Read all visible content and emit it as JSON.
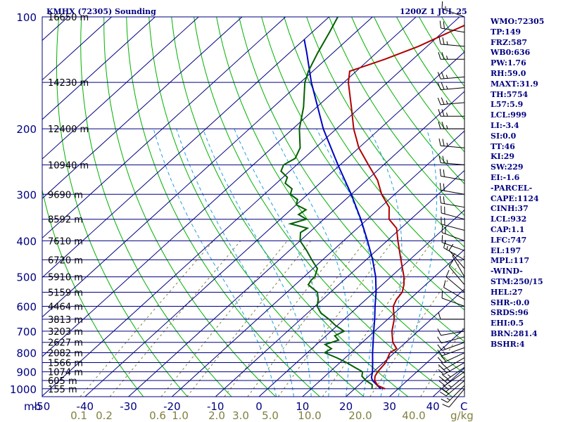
{
  "header": {
    "title": "KMHX (72305) Sounding",
    "datetime": "1200Z  1 JUL 25"
  },
  "indices": [
    "WMO:72305",
    "TP:149",
    "FRZ:587",
    "WB0:636",
    "PW:1.76",
    "RH:59.0",
    "MAXT:31.9",
    "TH:5754",
    "L57:5.9",
    "LCL:999",
    "LI:-3.4",
    "SI:0.0",
    "TT:46",
    "KI:29",
    "SW:229",
    "EI:-1.6",
    "-PARCEL-",
    "CAPE:1124",
    "CINH:37",
    "LCL:932",
    "CAP:1.1",
    "LFC:747",
    "EL:197",
    "MPL:117",
    "-WIND-",
    "STM:250/15",
    "HEL:27",
    "SHR-:0.0",
    "SRDS:96",
    "EHI:0.5",
    "BRN:281.4",
    "BSHR:4"
  ],
  "colors": {
    "frame": "#000080",
    "isobar": "#000080",
    "isotherm": "#000080",
    "dry_adiabat": "#00b000",
    "moist_adiabat": "#20a0e0",
    "mixing_ratio": "#808040",
    "temperature": "#b00000",
    "dewpoint": "#006000",
    "parcel": "#0000c0",
    "wind_barb": "#000000"
  },
  "chart_data": {
    "type": "skew-t log-p sounding",
    "pressure_ticks": [
      100,
      200,
      300,
      400,
      500,
      600,
      700,
      800,
      900,
      1000
    ],
    "pressure_unit": "mb",
    "height_labels": [
      {
        "p": 100,
        "label": "16650 m"
      },
      {
        "p": 150,
        "label": "14230 m"
      },
      {
        "p": 200,
        "label": "12400 m"
      },
      {
        "p": 250,
        "label": "10940 m"
      },
      {
        "p": 300,
        "label": "9690 m"
      },
      {
        "p": 350,
        "label": "8592 m"
      },
      {
        "p": 400,
        "label": "7610 m"
      },
      {
        "p": 450,
        "label": "6720 m"
      },
      {
        "p": 500,
        "label": "5910 m"
      },
      {
        "p": 550,
        "label": "5159 m"
      },
      {
        "p": 600,
        "label": "4464 m"
      },
      {
        "p": 650,
        "label": "3813 m"
      },
      {
        "p": 700,
        "label": "3203 m"
      },
      {
        "p": 750,
        "label": "2627 m"
      },
      {
        "p": 800,
        "label": "2082 m"
      },
      {
        "p": 850,
        "label": "1566 m"
      },
      {
        "p": 900,
        "label": "1074 m"
      },
      {
        "p": 950,
        "label": "605 m"
      },
      {
        "p": 1000,
        "label": "155 m"
      }
    ],
    "temperature_ticks": [
      -50,
      -40,
      -30,
      -20,
      -10,
      0,
      10,
      20,
      30,
      40
    ],
    "temperature_tick_labels": [
      "-50",
      "-40",
      "-30",
      "-20",
      "-10",
      "0",
      "10",
      "20",
      "30",
      "40"
    ],
    "corner_labels": {
      "pressure_unit": "mb",
      "temperature_unit": "C",
      "mixing_ratio_unit": "g/kg"
    },
    "mixing_ratio_labels": [
      {
        "w": 0.1,
        "label": "0.1"
      },
      {
        "w": 0.2,
        "label": "0.2"
      },
      {
        "w": 0.6,
        "label": "0.6"
      },
      {
        "w": 1.0,
        "label": "1.0"
      },
      {
        "w": 2.0,
        "label": "2.0"
      },
      {
        "w": 3.0,
        "label": "3.0"
      },
      {
        "w": 5.0,
        "label": "5.0"
      },
      {
        "w": 10.0,
        "label": "10.0"
      },
      {
        "w": 20.0,
        "label": "20.0"
      },
      {
        "w": 40.0,
        "label": "40.0"
      }
    ],
    "temperature_profile": [
      [
        1000,
        27.0
      ],
      [
        980,
        24.5
      ],
      [
        950,
        22.5
      ],
      [
        925,
        21.5
      ],
      [
        900,
        21.0
      ],
      [
        850,
        20.5
      ],
      [
        800,
        19.0
      ],
      [
        780,
        19.5
      ],
      [
        750,
        17.0
      ],
      [
        700,
        14.0
      ],
      [
        650,
        11.5
      ],
      [
        600,
        8.0
      ],
      [
        575,
        7.0
      ],
      [
        550,
        6.5
      ],
      [
        525,
        5.0
      ],
      [
        500,
        3.0
      ],
      [
        450,
        -2.0
      ],
      [
        400,
        -7.5
      ],
      [
        370,
        -11.0
      ],
      [
        350,
        -15.0
      ],
      [
        325,
        -18.0
      ],
      [
        300,
        -23.0
      ],
      [
        275,
        -27.5
      ],
      [
        250,
        -33.5
      ],
      [
        225,
        -40.0
      ],
      [
        200,
        -46.0
      ],
      [
        175,
        -52.0
      ],
      [
        150,
        -59.0
      ],
      [
        140,
        -61.5
      ],
      [
        130,
        -56.5
      ],
      [
        120,
        -52.0
      ],
      [
        110,
        -48.5
      ],
      [
        100,
        -44.5
      ]
    ],
    "dewpoint_profile": [
      [
        1000,
        24.0
      ],
      [
        975,
        23.0
      ],
      [
        950,
        20.5
      ],
      [
        925,
        18.5
      ],
      [
        900,
        17.5
      ],
      [
        875,
        14.5
      ],
      [
        850,
        11.5
      ],
      [
        825,
        8.0
      ],
      [
        800,
        4.0
      ],
      [
        780,
        4.5
      ],
      [
        760,
        2.0
      ],
      [
        740,
        4.0
      ],
      [
        720,
        2.0
      ],
      [
        700,
        3.0
      ],
      [
        675,
        -0.5
      ],
      [
        650,
        -3.5
      ],
      [
        625,
        -7.0
      ],
      [
        600,
        -9.5
      ],
      [
        575,
        -11.0
      ],
      [
        550,
        -13.0
      ],
      [
        525,
        -17.0
      ],
      [
        510,
        -17.5
      ],
      [
        500,
        -17.5
      ],
      [
        475,
        -19.0
      ],
      [
        450,
        -22.5
      ],
      [
        425,
        -26.0
      ],
      [
        400,
        -30.0
      ],
      [
        380,
        -32.0
      ],
      [
        370,
        -31.5
      ],
      [
        360,
        -36.5
      ],
      [
        350,
        -34.0
      ],
      [
        340,
        -37.0
      ],
      [
        330,
        -36.5
      ],
      [
        320,
        -40.0
      ],
      [
        310,
        -41.0
      ],
      [
        300,
        -44.0
      ],
      [
        290,
        -45.0
      ],
      [
        280,
        -48.0
      ],
      [
        270,
        -49.0
      ],
      [
        260,
        -52.0
      ],
      [
        250,
        -53.0
      ],
      [
        240,
        -52.0
      ],
      [
        225,
        -53.5
      ],
      [
        200,
        -58.5
      ],
      [
        175,
        -63.0
      ],
      [
        150,
        -69.0
      ],
      [
        140,
        -71.0
      ],
      [
        125,
        -73.5
      ],
      [
        110,
        -76.0
      ],
      [
        100,
        -78.0
      ]
    ],
    "parcel_path": [
      [
        1000,
        26.0
      ],
      [
        950,
        22.0
      ],
      [
        932,
        21.0
      ],
      [
        900,
        19.8
      ],
      [
        850,
        17.5
      ],
      [
        800,
        15.0
      ],
      [
        750,
        12.5
      ],
      [
        700,
        9.8
      ],
      [
        650,
        7.0
      ],
      [
        600,
        3.8
      ],
      [
        550,
        0.5
      ],
      [
        500,
        -3.5
      ],
      [
        450,
        -8.5
      ],
      [
        400,
        -14.5
      ],
      [
        350,
        -21.5
      ],
      [
        300,
        -30.0
      ],
      [
        250,
        -40.5
      ],
      [
        200,
        -53.0
      ],
      [
        150,
        -67.5
      ],
      [
        125,
        -76.0
      ],
      [
        115,
        -80.0
      ]
    ],
    "wind_barbs": [
      {
        "p": 1000,
        "dir": 220,
        "spd": 10
      },
      {
        "p": 980,
        "dir": 225,
        "spd": 15
      },
      {
        "p": 950,
        "dir": 230,
        "spd": 20
      },
      {
        "p": 925,
        "dir": 230,
        "spd": 25
      },
      {
        "p": 900,
        "dir": 235,
        "spd": 25
      },
      {
        "p": 875,
        "dir": 235,
        "spd": 25
      },
      {
        "p": 850,
        "dir": 240,
        "spd": 25
      },
      {
        "p": 825,
        "dir": 240,
        "spd": 20
      },
      {
        "p": 800,
        "dir": 245,
        "spd": 20
      },
      {
        "p": 775,
        "dir": 250,
        "spd": 15
      },
      {
        "p": 750,
        "dir": 250,
        "spd": 15
      },
      {
        "p": 725,
        "dir": 255,
        "spd": 10
      },
      {
        "p": 700,
        "dir": 260,
        "spd": 10
      },
      {
        "p": 650,
        "dir": 270,
        "spd": 10
      },
      {
        "p": 600,
        "dir": 290,
        "spd": 10
      },
      {
        "p": 575,
        "dir": 300,
        "spd": 10
      },
      {
        "p": 550,
        "dir": 310,
        "spd": 10
      },
      {
        "p": 525,
        "dir": 320,
        "spd": 10
      },
      {
        "p": 500,
        "dir": 330,
        "spd": 5
      },
      {
        "p": 475,
        "dir": 320,
        "spd": 10
      },
      {
        "p": 450,
        "dir": 300,
        "spd": 15
      },
      {
        "p": 425,
        "dir": 290,
        "spd": 15
      },
      {
        "p": 400,
        "dir": 290,
        "spd": 20
      },
      {
        "p": 375,
        "dir": 285,
        "spd": 20
      },
      {
        "p": 350,
        "dir": 285,
        "spd": 20
      },
      {
        "p": 325,
        "dir": 280,
        "spd": 20
      },
      {
        "p": 300,
        "dir": 280,
        "spd": 20
      },
      {
        "p": 275,
        "dir": 280,
        "spd": 20
      },
      {
        "p": 250,
        "dir": 275,
        "spd": 25
      },
      {
        "p": 225,
        "dir": 275,
        "spd": 25
      },
      {
        "p": 200,
        "dir": 270,
        "spd": 25
      },
      {
        "p": 185,
        "dir": 270,
        "spd": 25
      },
      {
        "p": 170,
        "dir": 265,
        "spd": 25
      },
      {
        "p": 155,
        "dir": 265,
        "spd": 25
      },
      {
        "p": 145,
        "dir": 265,
        "spd": 25
      },
      {
        "p": 130,
        "dir": 270,
        "spd": 25
      },
      {
        "p": 120,
        "dir": 275,
        "spd": 25
      },
      {
        "p": 110,
        "dir": 280,
        "spd": 20
      },
      {
        "p": 100,
        "dir": 290,
        "spd": 15
      }
    ]
  }
}
